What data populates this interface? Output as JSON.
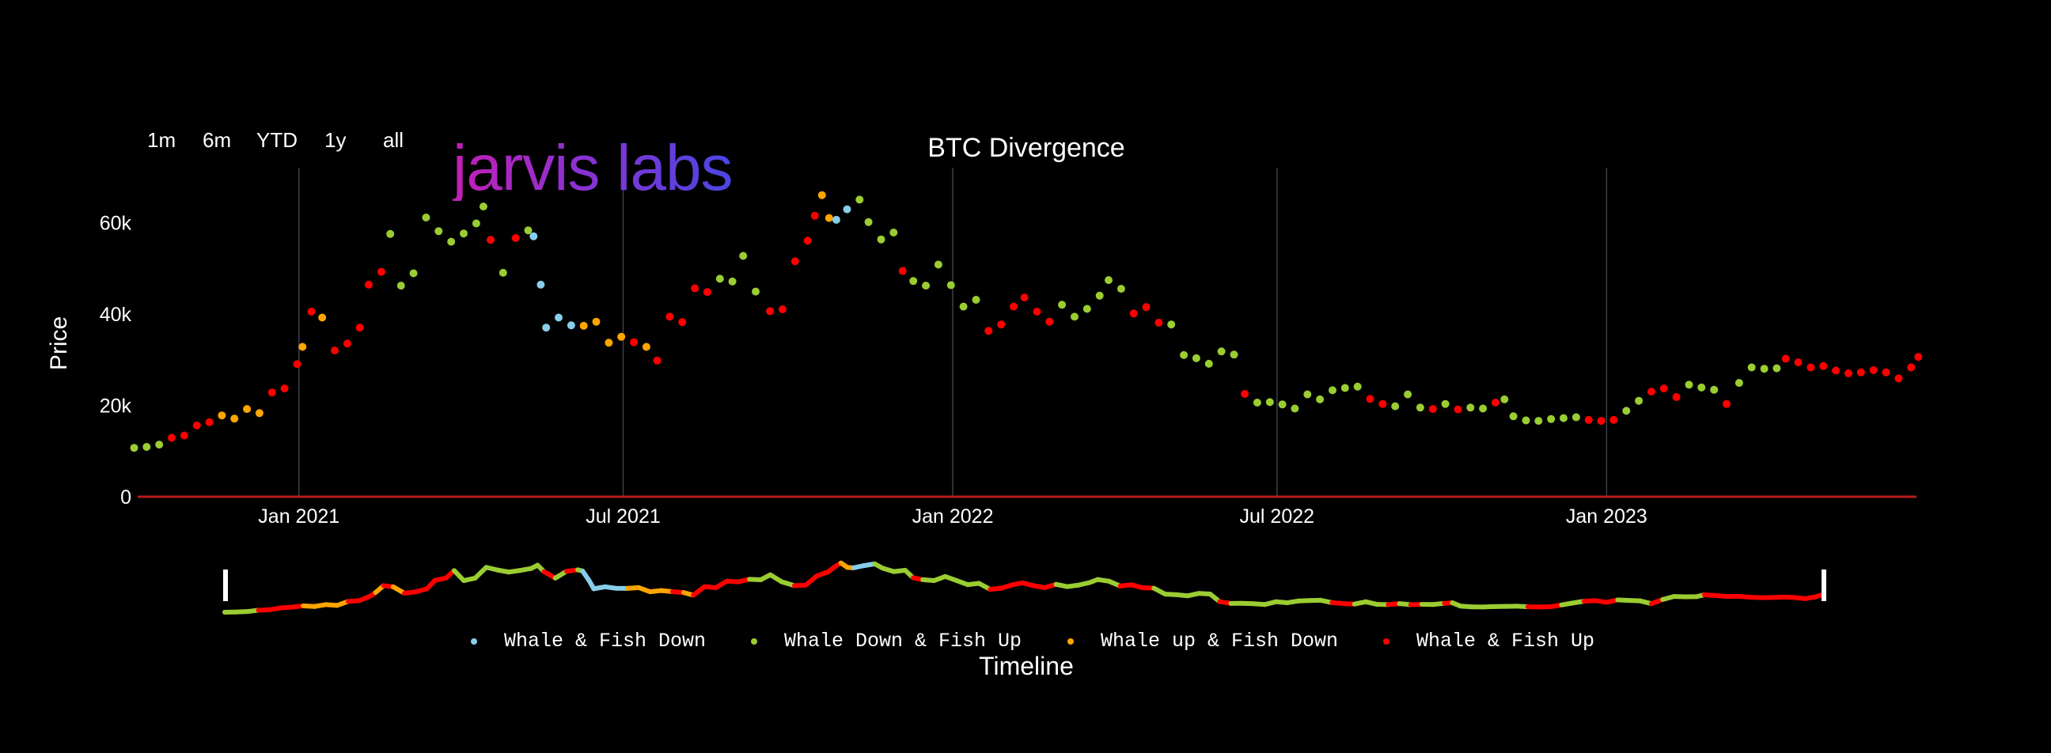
{
  "title": "BTC Divergence",
  "logo_text": "jarvis labs",
  "range_buttons": [
    "1m",
    "6m",
    "YTD",
    "1y",
    "all"
  ],
  "colors": {
    "Whale & Fish Down": "#87ceeb",
    "Whale Down & Fish Up": "#9acd32",
    "Whale up & Fish Down": "#ffa500",
    "Whale & Fish Up": "#ff0000",
    "zero_line": "#b71c1c",
    "grid": "#3a3f4a"
  },
  "chart_data": {
    "type": "scatter",
    "title": "BTC Divergence",
    "xlabel": "Timeline",
    "ylabel": "Price",
    "xlim": [
      "2020-10-03",
      "2023-06-23"
    ],
    "ylim": [
      0,
      72000
    ],
    "x_ticks": [
      {
        "date": "2021-01-01",
        "label": "Jan 2021"
      },
      {
        "date": "2021-07-01",
        "label": "Jul 2021"
      },
      {
        "date": "2022-01-01",
        "label": "Jan 2022"
      },
      {
        "date": "2022-07-01",
        "label": "Jul 2022"
      },
      {
        "date": "2023-01-01",
        "label": "Jan 2023"
      }
    ],
    "y_ticks": [
      {
        "value": 0,
        "label": "0"
      },
      {
        "value": 20000,
        "label": "20k"
      },
      {
        "value": 40000,
        "label": "40k"
      },
      {
        "value": 60000,
        "label": "60k"
      }
    ],
    "grid": "vertical",
    "legend_position": "bottom",
    "range_slider": true,
    "series_names": [
      "Whale & Fish Down",
      "Whale Down & Fish Up",
      "Whale up & Fish Down",
      "Whale & Fish Up"
    ],
    "points": [
      [
        "2020-10-01",
        10700,
        1
      ],
      [
        "2020-10-08",
        10900,
        1
      ],
      [
        "2020-10-15",
        11400,
        1
      ],
      [
        "2020-10-22",
        12900,
        3
      ],
      [
        "2020-10-29",
        13400,
        3
      ],
      [
        "2020-11-05",
        15600,
        3
      ],
      [
        "2020-11-12",
        16300,
        3
      ],
      [
        "2020-11-19",
        17800,
        2
      ],
      [
        "2020-11-26",
        17100,
        2
      ],
      [
        "2020-12-03",
        19200,
        2
      ],
      [
        "2020-12-10",
        18300,
        2
      ],
      [
        "2020-12-17",
        22800,
        3
      ],
      [
        "2020-12-24",
        23700,
        3
      ],
      [
        "2020-12-31",
        29000,
        3
      ],
      [
        "2021-01-03",
        32800,
        2
      ],
      [
        "2021-01-08",
        40500,
        3
      ],
      [
        "2021-01-14",
        39200,
        2
      ],
      [
        "2021-01-21",
        32000,
        3
      ],
      [
        "2021-01-28",
        33500,
        3
      ],
      [
        "2021-02-04",
        37000,
        3
      ],
      [
        "2021-02-09",
        46400,
        3
      ],
      [
        "2021-02-16",
        49200,
        3
      ],
      [
        "2021-02-21",
        57500,
        1
      ],
      [
        "2021-02-27",
        46200,
        1
      ],
      [
        "2021-03-06",
        48900,
        1
      ],
      [
        "2021-03-13",
        61100,
        1
      ],
      [
        "2021-03-20",
        58100,
        1
      ],
      [
        "2021-03-27",
        55800,
        1
      ],
      [
        "2021-04-03",
        57600,
        1
      ],
      [
        "2021-04-10",
        59800,
        1
      ],
      [
        "2021-04-14",
        63500,
        1
      ],
      [
        "2021-04-18",
        56200,
        3
      ],
      [
        "2021-04-25",
        49000,
        1
      ],
      [
        "2021-05-02",
        56600,
        3
      ],
      [
        "2021-05-09",
        58300,
        1
      ],
      [
        "2021-05-12",
        57000,
        0
      ],
      [
        "2021-05-16",
        46400,
        0
      ],
      [
        "2021-05-19",
        37000,
        0
      ],
      [
        "2021-05-26",
        39200,
        0
      ],
      [
        "2021-06-02",
        37500,
        0
      ],
      [
        "2021-06-09",
        37400,
        2
      ],
      [
        "2021-06-16",
        38300,
        2
      ],
      [
        "2021-06-23",
        33700,
        2
      ],
      [
        "2021-06-30",
        35000,
        2
      ],
      [
        "2021-07-07",
        33800,
        3
      ],
      [
        "2021-07-14",
        32800,
        2
      ],
      [
        "2021-07-20",
        29800,
        3
      ],
      [
        "2021-07-27",
        39400,
        3
      ],
      [
        "2021-08-03",
        38200,
        3
      ],
      [
        "2021-08-10",
        45600,
        3
      ],
      [
        "2021-08-17",
        44800,
        3
      ],
      [
        "2021-08-24",
        47700,
        1
      ],
      [
        "2021-08-31",
        47100,
        1
      ],
      [
        "2021-09-06",
        52700,
        1
      ],
      [
        "2021-09-13",
        44900,
        1
      ],
      [
        "2021-09-21",
        40600,
        3
      ],
      [
        "2021-09-28",
        41000,
        3
      ],
      [
        "2021-10-05",
        51500,
        3
      ],
      [
        "2021-10-12",
        56000,
        3
      ],
      [
        "2021-10-16",
        61500,
        3
      ],
      [
        "2021-10-20",
        66000,
        2
      ],
      [
        "2021-10-24",
        61000,
        2
      ],
      [
        "2021-10-28",
        60600,
        0
      ],
      [
        "2021-11-03",
        62900,
        0
      ],
      [
        "2021-11-10",
        65000,
        1
      ],
      [
        "2021-11-15",
        60100,
        1
      ],
      [
        "2021-11-22",
        56300,
        1
      ],
      [
        "2021-11-29",
        57800,
        1
      ],
      [
        "2021-12-04",
        49400,
        3
      ],
      [
        "2021-12-10",
        47200,
        1
      ],
      [
        "2021-12-17",
        46200,
        1
      ],
      [
        "2021-12-24",
        50800,
        1
      ],
      [
        "2021-12-31",
        46300,
        1
      ],
      [
        "2022-01-07",
        41600,
        1
      ],
      [
        "2022-01-14",
        43100,
        1
      ],
      [
        "2022-01-21",
        36300,
        3
      ],
      [
        "2022-01-28",
        37700,
        3
      ],
      [
        "2022-02-04",
        41600,
        3
      ],
      [
        "2022-02-10",
        43600,
        3
      ],
      [
        "2022-02-17",
        40500,
        3
      ],
      [
        "2022-02-24",
        38300,
        3
      ],
      [
        "2022-03-03",
        42000,
        1
      ],
      [
        "2022-03-10",
        39400,
        1
      ],
      [
        "2022-03-17",
        41100,
        1
      ],
      [
        "2022-03-24",
        44000,
        1
      ],
      [
        "2022-03-29",
        47400,
        1
      ],
      [
        "2022-04-05",
        45500,
        1
      ],
      [
        "2022-04-12",
        40100,
        3
      ],
      [
        "2022-04-19",
        41500,
        3
      ],
      [
        "2022-04-26",
        38100,
        3
      ],
      [
        "2022-05-03",
        37700,
        1
      ],
      [
        "2022-05-10",
        31000,
        1
      ],
      [
        "2022-05-17",
        30300,
        1
      ],
      [
        "2022-05-24",
        29100,
        1
      ],
      [
        "2022-05-31",
        31800,
        1
      ],
      [
        "2022-06-07",
        31100,
        1
      ],
      [
        "2022-06-13",
        22500,
        3
      ],
      [
        "2022-06-20",
        20600,
        1
      ],
      [
        "2022-06-27",
        20700,
        1
      ],
      [
        "2022-07-04",
        20200,
        1
      ],
      [
        "2022-07-11",
        19300,
        1
      ],
      [
        "2022-07-18",
        22400,
        1
      ],
      [
        "2022-07-25",
        21300,
        1
      ],
      [
        "2022-08-01",
        23300,
        1
      ],
      [
        "2022-08-08",
        23800,
        1
      ],
      [
        "2022-08-15",
        24100,
        1
      ],
      [
        "2022-08-22",
        21400,
        3
      ],
      [
        "2022-08-29",
        20300,
        3
      ],
      [
        "2022-09-05",
        19800,
        1
      ],
      [
        "2022-09-12",
        22400,
        1
      ],
      [
        "2022-09-19",
        19500,
        1
      ],
      [
        "2022-09-26",
        19200,
        3
      ],
      [
        "2022-10-03",
        20300,
        1
      ],
      [
        "2022-10-10",
        19100,
        3
      ],
      [
        "2022-10-17",
        19500,
        1
      ],
      [
        "2022-10-24",
        19300,
        1
      ],
      [
        "2022-10-31",
        20600,
        3
      ],
      [
        "2022-11-05",
        21300,
        1
      ],
      [
        "2022-11-10",
        17600,
        1
      ],
      [
        "2022-11-17",
        16700,
        1
      ],
      [
        "2022-11-24",
        16600,
        1
      ],
      [
        "2022-12-01",
        17000,
        1
      ],
      [
        "2022-12-08",
        17200,
        1
      ],
      [
        "2022-12-15",
        17400,
        1
      ],
      [
        "2022-12-22",
        16800,
        3
      ],
      [
        "2022-12-29",
        16600,
        3
      ],
      [
        "2023-01-05",
        16800,
        3
      ],
      [
        "2023-01-12",
        18800,
        1
      ],
      [
        "2023-01-19",
        21000,
        1
      ],
      [
        "2023-01-26",
        23000,
        3
      ],
      [
        "2023-02-02",
        23700,
        3
      ],
      [
        "2023-02-09",
        21800,
        3
      ],
      [
        "2023-02-16",
        24500,
        1
      ],
      [
        "2023-02-23",
        23900,
        1
      ],
      [
        "2023-03-02",
        23400,
        1
      ],
      [
        "2023-03-09",
        20300,
        3
      ],
      [
        "2023-03-16",
        24900,
        1
      ],
      [
        "2023-03-23",
        28300,
        1
      ],
      [
        "2023-03-30",
        28000,
        1
      ],
      [
        "2023-04-06",
        28100,
        1
      ],
      [
        "2023-04-11",
        30200,
        3
      ],
      [
        "2023-04-18",
        29400,
        3
      ],
      [
        "2023-04-25",
        28300,
        3
      ],
      [
        "2023-05-02",
        28600,
        3
      ],
      [
        "2023-05-09",
        27600,
        3
      ],
      [
        "2023-05-16",
        27000,
        3
      ],
      [
        "2023-05-23",
        27200,
        3
      ],
      [
        "2023-05-30",
        27700,
        3
      ],
      [
        "2023-06-06",
        27200,
        3
      ],
      [
        "2023-06-13",
        25900,
        3
      ],
      [
        "2023-06-20",
        28300,
        3
      ],
      [
        "2023-06-24",
        30600,
        3
      ]
    ]
  }
}
